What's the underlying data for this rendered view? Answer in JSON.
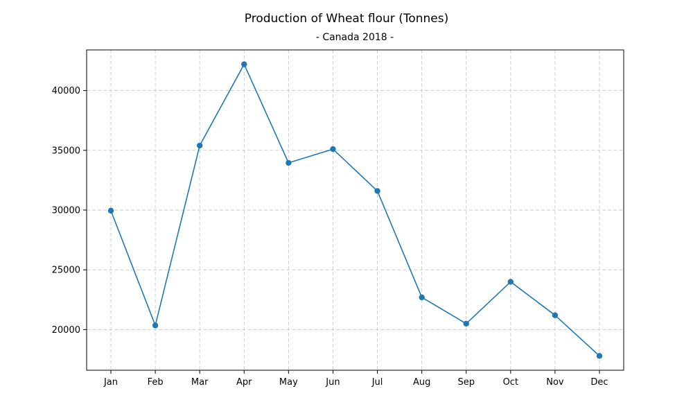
{
  "chart_data": {
    "type": "line",
    "title": "Production of Wheat flour (Tonnes)",
    "subtitle": "- Canada 2018 -",
    "xlabel": "",
    "ylabel": "",
    "categories": [
      "Jan",
      "Feb",
      "Mar",
      "Apr",
      "May",
      "Jun",
      "Jul",
      "Aug",
      "Sep",
      "Oct",
      "Nov",
      "Dec"
    ],
    "series": [
      {
        "values": [
          29950,
          20350,
          35400,
          42200,
          33950,
          35100,
          31600,
          22700,
          20500,
          24000,
          21200,
          17800
        ]
      }
    ],
    "ylim": [
      16600,
      43400
    ],
    "yticks": [
      20000,
      25000,
      30000,
      35000,
      40000
    ],
    "grid": true,
    "legend": "none",
    "colors": {
      "line": "#1f77b4",
      "marker": "#1f77b4",
      "grid": "#c8c8c8"
    }
  }
}
